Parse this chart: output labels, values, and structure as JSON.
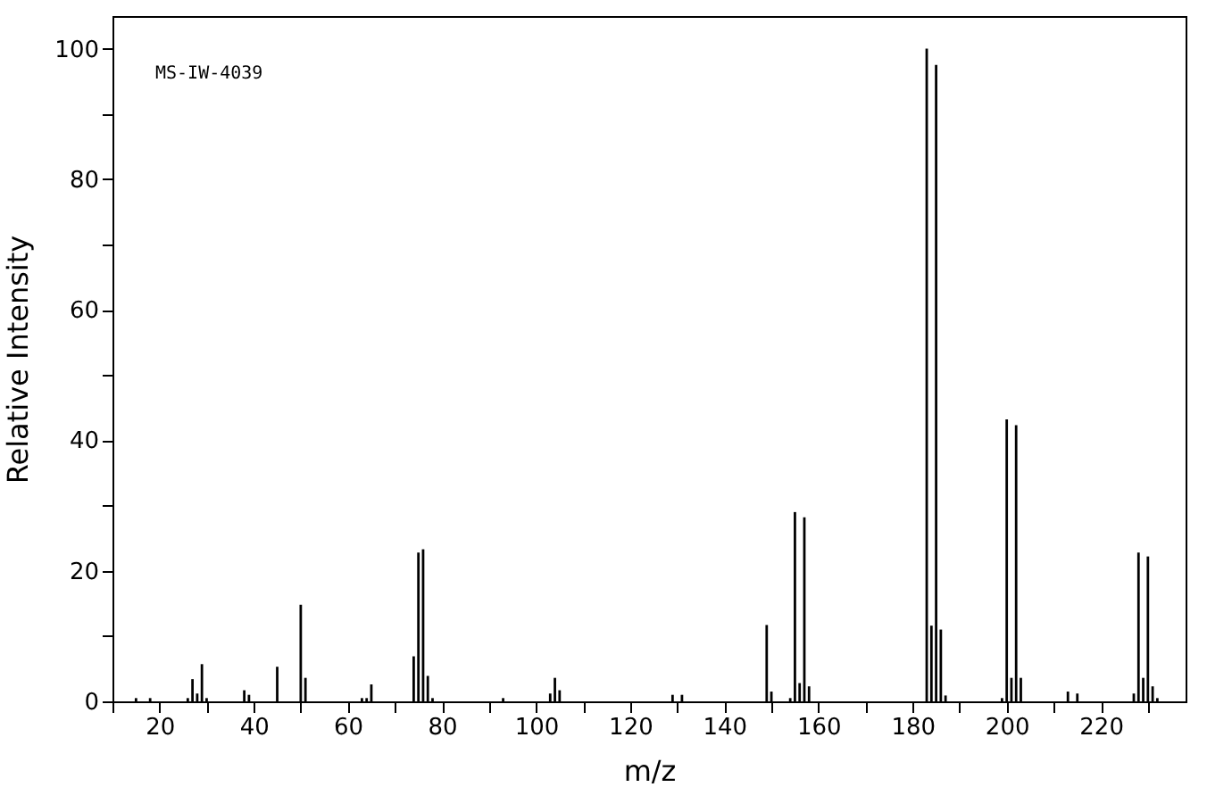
{
  "chart_data": {
    "type": "bar",
    "xlabel": "m/z",
    "ylabel": "Relative Intensity",
    "annotations": [
      "MS-IW-4039"
    ],
    "x": [
      15,
      18,
      26,
      27,
      28,
      29,
      30,
      38,
      39,
      45,
      50,
      51,
      63,
      64,
      65,
      74,
      75,
      76,
      77,
      78,
      93,
      103,
      104,
      105,
      129,
      131,
      149,
      150,
      154,
      155,
      156,
      157,
      158,
      183,
      184,
      185,
      186,
      187,
      199,
      200,
      201,
      202,
      203,
      213,
      215,
      227,
      228,
      229,
      230,
      231,
      232
    ],
    "series": [
      {
        "color": "#000000",
        "values": [
          0.5,
          0.5,
          0.5,
          3.4,
          1.2,
          5.7,
          0.5,
          1.7,
          1.0,
          5.3,
          14.8,
          3.6,
          0.5,
          0.5,
          2.6,
          6.9,
          22.8,
          23.3,
          3.9,
          0.5,
          0.5,
          1.2,
          3.6,
          1.7,
          1.0,
          1.0,
          11.7,
          1.5,
          0.5,
          29.0,
          2.8,
          28.2,
          2.3,
          100,
          11.6,
          97.5,
          11.0,
          0.9,
          0.5,
          43.2,
          3.6,
          42.3,
          3.6,
          1.5,
          1.2,
          1.2,
          22.8,
          3.6,
          22.2,
          2.3,
          0.5
        ]
      }
    ],
    "xlim": [
      10,
      238
    ],
    "xticks": [
      {
        "value": 10,
        "label": null
      },
      20,
      {
        "value": 30,
        "label": null
      },
      40,
      {
        "value": 50,
        "label": null
      },
      60,
      {
        "value": 70,
        "label": null
      },
      80,
      {
        "value": 90,
        "label": null
      },
      100,
      {
        "value": 110,
        "label": null
      },
      120,
      {
        "value": 130,
        "label": null
      },
      140,
      {
        "value": 150,
        "label": null
      },
      160,
      {
        "value": 170,
        "label": null
      },
      180,
      {
        "value": 190,
        "label": null
      },
      200,
      {
        "value": 210,
        "label": null
      },
      220,
      {
        "value": 230,
        "label": null
      }
    ],
    "ylim": [
      0,
      105
    ],
    "yticks": [
      0,
      {
        "value": 10,
        "label": null
      },
      20,
      {
        "value": 30,
        "label": null
      },
      40,
      {
        "value": 50,
        "label": null
      },
      60,
      {
        "value": 70,
        "label": null
      },
      80,
      {
        "value": 90,
        "label": null
      },
      100
    ],
    "grid": false
  }
}
